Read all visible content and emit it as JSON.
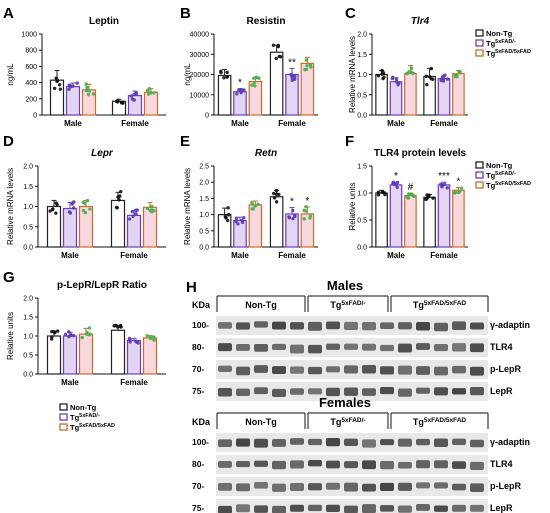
{
  "colors": {
    "nontg": "#222222",
    "tg5xfad": "#6a3fc0",
    "tgboth": "#d06a2a",
    "purple_bg": "#e3d4f2",
    "orange_bg": "#f7d8df"
  },
  "legend": {
    "items": [
      {
        "label": "Non-Tg",
        "sup": "",
        "color": "#222222"
      },
      {
        "label": "Tg",
        "sup": "5xFAD/-",
        "color": "#6a3fc0"
      },
      {
        "label": "Tg",
        "sup": "5xFAD/5xFAD",
        "color": "#d06a2a"
      }
    ],
    "items_f": [
      {
        "label": "Non-Tg",
        "sup": "",
        "color": "#222222"
      },
      {
        "label": "Tg",
        "sup": "5xFAD/-",
        "color": "#6a3fc0"
      },
      {
        "label": "Tg",
        "sup": "5xFAD/5xFAD",
        "color": "#d06a2a"
      }
    ],
    "items_g": [
      {
        "label": "Non-Tg",
        "sup": "",
        "color": "#222222"
      },
      {
        "label": "Tg",
        "sup": "5xFAD/-",
        "color": "#6a3fc0"
      },
      {
        "label": "Tg",
        "sup": "5xFAD/5xFAD",
        "color": "#d06a2a"
      }
    ]
  },
  "chart_data": [
    {
      "panel": "A",
      "type": "bar",
      "title": "Leptin",
      "title_italic": false,
      "ylabel": "ng/mL",
      "ylim": [
        0,
        1000
      ],
      "yticks": [
        0,
        200,
        400,
        600,
        800,
        1000
      ],
      "yticklabels": [
        "0",
        "200",
        "400",
        "600",
        "800",
        "1000"
      ],
      "categories": [
        "Male",
        "Female"
      ],
      "series": [
        {
          "name": "Non-Tg",
          "values": [
            430,
            170
          ]
        },
        {
          "name": "Tg5xFAD/-",
          "values": [
            350,
            240
          ]
        },
        {
          "name": "Tg5xFAD/5xFAD",
          "values": [
            310,
            280
          ]
        }
      ],
      "errors": [
        [
          120,
          25
        ],
        [
          45,
          55
        ],
        [
          70,
          45
        ]
      ],
      "annotations": [
        [
          "",
          ""
        ],
        [
          "",
          ""
        ],
        [
          "",
          ""
        ]
      ]
    },
    {
      "panel": "B",
      "type": "bar",
      "title": "Resistin",
      "title_italic": false,
      "ylabel": "ng/mL",
      "ylim": [
        0,
        40000
      ],
      "yticks": [
        0,
        10000,
        20000,
        30000,
        40000
      ],
      "yticklabels": [
        "0",
        "10000",
        "20000",
        "30000",
        "40000"
      ],
      "categories": [
        "Male",
        "Female"
      ],
      "series": [
        {
          "name": "Non-Tg",
          "values": [
            19500,
            31000
          ]
        },
        {
          "name": "Tg5xFAD/-",
          "values": [
            11500,
            20000
          ]
        },
        {
          "name": "Tg5xFAD/5xFAD",
          "values": [
            16500,
            25500
          ]
        }
      ],
      "errors": [
        [
          3000,
          3500
        ],
        [
          1500,
          3000
        ],
        [
          2000,
          3000
        ]
      ],
      "annotations": [
        [
          "",
          ""
        ],
        [
          "*",
          "**"
        ],
        [
          "",
          ""
        ]
      ]
    },
    {
      "panel": "C",
      "type": "bar",
      "title": "Tlr4",
      "title_italic": true,
      "ylabel": "Relative mRNA levels",
      "ylim": [
        0,
        2.0
      ],
      "yticks": [
        0,
        0.5,
        1.0,
        1.5,
        2.0
      ],
      "yticklabels": [
        "0.0",
        "0.5",
        "1.0",
        "1.5",
        "2.0"
      ],
      "categories": [
        "Male",
        "Female"
      ],
      "series": [
        {
          "name": "Non-Tg",
          "values": [
            1.0,
            0.95
          ]
        },
        {
          "name": "Tg5xFAD/-",
          "values": [
            0.82,
            0.9
          ]
        },
        {
          "name": "Tg5xFAD/5xFAD",
          "values": [
            1.02,
            1.02
          ]
        }
      ],
      "errors": [
        [
          0.1,
          0.2
        ],
        [
          0.1,
          0.08
        ],
        [
          0.2,
          0.08
        ]
      ],
      "annotations": [
        [
          "",
          ""
        ],
        [
          "",
          ""
        ],
        [
          "",
          ""
        ]
      ]
    },
    {
      "panel": "D",
      "type": "bar",
      "title": "Lepr",
      "title_italic": true,
      "ylabel": "Relative mRNA levels",
      "ylim": [
        0,
        2.0
      ],
      "yticks": [
        0,
        0.5,
        1.0,
        1.5,
        2.0
      ],
      "yticklabels": [
        "0.0",
        "0.5",
        "1.0",
        "1.5",
        "2.0"
      ],
      "categories": [
        "Male",
        "Female"
      ],
      "series": [
        {
          "name": "Non-Tg",
          "values": [
            1.0,
            1.15
          ]
        },
        {
          "name": "Tg5xFAD/-",
          "values": [
            0.95,
            0.78
          ]
        },
        {
          "name": "Tg5xFAD/5xFAD",
          "values": [
            1.0,
            0.98
          ]
        }
      ],
      "errors": [
        [
          0.15,
          0.2
        ],
        [
          0.15,
          0.12
        ],
        [
          0.15,
          0.12
        ]
      ],
      "annotations": [
        [
          "",
          ""
        ],
        [
          "",
          ""
        ],
        [
          "",
          ""
        ]
      ]
    },
    {
      "panel": "E",
      "type": "bar",
      "title": "Retn",
      "title_italic": true,
      "ylabel": "Relative mRNA levels",
      "ylim": [
        0,
        2.5
      ],
      "yticks": [
        0,
        0.5,
        1.0,
        1.5,
        2.0,
        2.5
      ],
      "yticklabels": [
        "0.0",
        "0.5",
        "1.0",
        "1.5",
        "2.0",
        "2.5"
      ],
      "categories": [
        "Male",
        "Female"
      ],
      "series": [
        {
          "name": "Non-Tg",
          "values": [
            1.0,
            1.55
          ]
        },
        {
          "name": "Tg5xFAD/-",
          "values": [
            0.82,
            1.02
          ]
        },
        {
          "name": "Tg5xFAD/5xFAD",
          "values": [
            1.3,
            1.02
          ]
        }
      ],
      "errors": [
        [
          0.2,
          0.2
        ],
        [
          0.1,
          0.2
        ],
        [
          0.12,
          0.22
        ]
      ],
      "annotations": [
        [
          "",
          ""
        ],
        [
          "",
          "*"
        ],
        [
          "",
          "*"
        ]
      ]
    },
    {
      "panel": "F",
      "type": "bar",
      "title": "TLR4 protein levels",
      "title_italic": false,
      "ylabel": "Relative units",
      "ylim": [
        0,
        1.5
      ],
      "yticks": [
        0,
        0.5,
        1.0,
        1.5
      ],
      "yticklabels": [
        "0.0",
        "0.5",
        "1.0",
        "1.5"
      ],
      "categories": [
        "Male",
        "Female"
      ],
      "series": [
        {
          "name": "Non-Tg",
          "values": [
            1.0,
            0.92
          ]
        },
        {
          "name": "Tg5xFAD/-",
          "values": [
            1.15,
            1.15
          ]
        },
        {
          "name": "Tg5xFAD/5xFAD",
          "values": [
            0.95,
            1.05
          ]
        }
      ],
      "errors": [
        [
          0.05,
          0.05
        ],
        [
          0.05,
          0.05
        ],
        [
          0.05,
          0.05
        ]
      ],
      "annotations": [
        [
          "",
          ""
        ],
        [
          "*",
          "***"
        ],
        [
          "#",
          "*"
        ]
      ]
    },
    {
      "panel": "G",
      "type": "bar",
      "title": "p-LepR/LepR Ratio",
      "title_italic": false,
      "ylabel": "Relative units",
      "ylim": [
        0,
        2.0
      ],
      "yticks": [
        0,
        0.5,
        1.0,
        1.5,
        2.0
      ],
      "yticklabels": [
        "0.0",
        "0.5",
        "1.0",
        "1.5",
        "2.0"
      ],
      "categories": [
        "Male",
        "Female"
      ],
      "series": [
        {
          "name": "Non-Tg",
          "values": [
            1.0,
            1.15
          ]
        },
        {
          "name": "Tg5xFAD/-",
          "values": [
            1.0,
            0.88
          ]
        },
        {
          "name": "Tg5xFAD/5xFAD",
          "values": [
            1.05,
            0.95
          ]
        }
      ],
      "errors": [
        [
          0.12,
          0.12
        ],
        [
          0.1,
          0.06
        ],
        [
          0.15,
          0.06
        ]
      ],
      "annotations": [
        [
          "",
          ""
        ],
        [
          "",
          ""
        ],
        [
          "",
          ""
        ]
      ]
    }
  ],
  "blot": {
    "panel_label": "H",
    "kda_label": "KDa",
    "headers": [
      {
        "label": "Non-Tg",
        "sup": ""
      },
      {
        "label": "Tg",
        "sup": "5xFAD/-"
      },
      {
        "label": "Tg",
        "sup": "5xFAD/5xFAD"
      }
    ],
    "males": {
      "title": "Males",
      "rows": [
        {
          "name": "γ-adaptin",
          "marker": "100-"
        },
        {
          "name": "TLR4",
          "marker": "80-"
        },
        {
          "name": "p-LepR",
          "marker": "70-"
        },
        {
          "name": "LepR",
          "marker": "75-"
        }
      ]
    },
    "females": {
      "title": "Females",
      "rows": [
        {
          "name": "γ-adaptin",
          "marker": "100-"
        },
        {
          "name": "TLR4",
          "marker": "80-"
        },
        {
          "name": "p-LepR",
          "marker": "70-"
        },
        {
          "name": "LepR",
          "marker": "75-"
        }
      ]
    }
  }
}
